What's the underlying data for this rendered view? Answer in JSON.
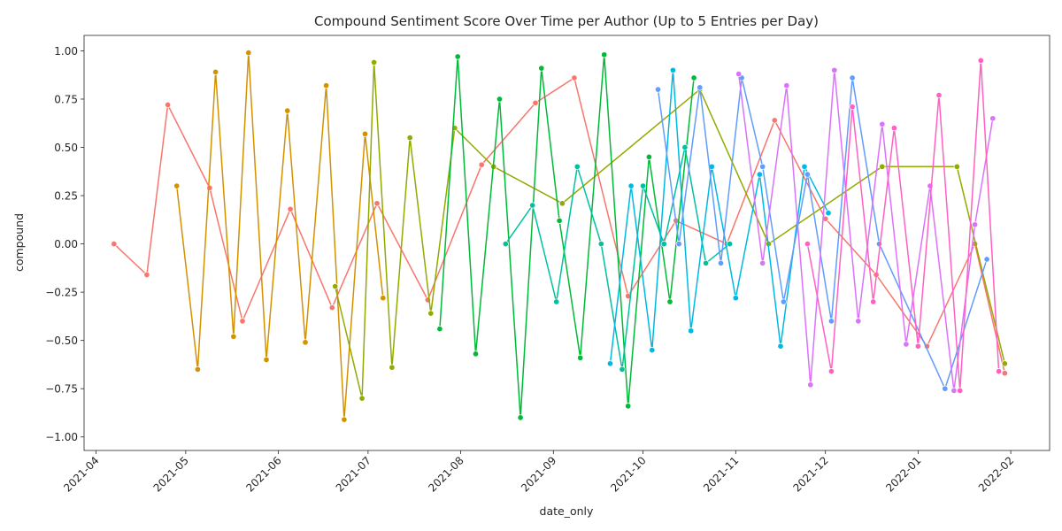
{
  "chart_data": {
    "type": "line",
    "title": "Compound Sentiment Score Over Time per Author (Up to 5 Entries per Day)",
    "xlabel": "date_only",
    "ylabel": "compound",
    "x_range": [
      "2021-03-28",
      "2022-02-14"
    ],
    "ylim": [
      -1.07,
      1.08
    ],
    "x_ticks": [
      "2021-04",
      "2021-05",
      "2021-06",
      "2021-07",
      "2021-08",
      "2021-09",
      "2021-10",
      "2021-11",
      "2021-12",
      "2022-01",
      "2022-02"
    ],
    "y_ticks": [
      -1.0,
      -0.75,
      -0.5,
      -0.25,
      0.0,
      0.25,
      0.5,
      0.75,
      1.0
    ],
    "y_tick_labels": [
      "−1.00",
      "−0.75",
      "−0.50",
      "−0.25",
      "0.00",
      "0.25",
      "0.50",
      "0.75",
      "1.00"
    ],
    "grid": false,
    "legend": "none",
    "marker": "circle",
    "series": [
      {
        "color": "#f8766d",
        "x": [
          "2021-04-07",
          "2021-04-18",
          "2021-04-25",
          "2021-05-09",
          "2021-05-20",
          "2021-06-05",
          "2021-06-19",
          "2021-07-04",
          "2021-07-21",
          "2021-08-08",
          "2021-08-26",
          "2021-09-08",
          "2021-09-26",
          "2021-10-12",
          "2021-10-29",
          "2021-11-14",
          "2021-12-01",
          "2021-12-18",
          "2022-01-04",
          "2022-01-20",
          "2022-01-30"
        ],
        "y": [
          0.0,
          -0.16,
          0.72,
          0.29,
          -0.4,
          0.18,
          -0.33,
          0.21,
          -0.29,
          0.41,
          0.73,
          0.86,
          -0.27,
          0.12,
          0.0,
          0.64,
          0.13,
          -0.16,
          -0.53,
          0.0,
          -0.67
        ]
      },
      {
        "color": "#d39200",
        "x": [
          "2021-04-28",
          "2021-05-05",
          "2021-05-11",
          "2021-05-17",
          "2021-05-22",
          "2021-05-28",
          "2021-06-04",
          "2021-06-10",
          "2021-06-17",
          "2021-06-23",
          "2021-06-30",
          "2021-07-06"
        ],
        "y": [
          0.3,
          -0.65,
          0.89,
          -0.48,
          0.99,
          -0.6,
          0.69,
          -0.51,
          0.82,
          -0.91,
          0.57,
          -0.28
        ]
      },
      {
        "color": "#93aa00",
        "x": [
          "2021-06-20",
          "2021-06-29",
          "2021-07-03",
          "2021-07-09",
          "2021-07-15",
          "2021-07-22",
          "2021-07-30",
          "2021-08-12",
          "2021-09-04",
          "2021-10-20",
          "2021-11-12",
          "2021-12-20",
          "2022-01-14",
          "2022-01-30"
        ],
        "y": [
          -0.22,
          -0.8,
          0.94,
          -0.64,
          0.55,
          -0.36,
          0.6,
          0.4,
          0.21,
          0.8,
          0.0,
          0.4,
          0.4,
          -0.62
        ]
      },
      {
        "color": "#00ba38",
        "x": [
          "2021-07-25",
          "2021-07-31",
          "2021-08-06",
          "2021-08-14",
          "2021-08-21",
          "2021-08-28",
          "2021-09-03",
          "2021-09-10",
          "2021-09-18",
          "2021-09-26",
          "2021-10-03",
          "2021-10-10",
          "2021-10-18"
        ],
        "y": [
          -0.44,
          0.97,
          -0.57,
          0.75,
          -0.9,
          0.91,
          0.12,
          -0.59,
          0.98,
          -0.84,
          0.45,
          -0.3,
          0.86
        ]
      },
      {
        "color": "#00c19f",
        "x": [
          "2021-08-16",
          "2021-08-25",
          "2021-09-02",
          "2021-09-09",
          "2021-09-17",
          "2021-09-24",
          "2021-10-01",
          "2021-10-08",
          "2021-10-15",
          "2021-10-22",
          "2021-10-30"
        ],
        "y": [
          0.0,
          0.2,
          -0.3,
          0.4,
          0.0,
          -0.65,
          0.3,
          0.0,
          0.5,
          -0.1,
          0.0
        ]
      },
      {
        "color": "#00b9e3",
        "x": [
          "2021-09-20",
          "2021-09-27",
          "2021-10-04",
          "2021-10-11",
          "2021-10-17",
          "2021-10-24",
          "2021-11-01",
          "2021-11-09",
          "2021-11-16",
          "2021-11-24",
          "2021-12-02"
        ],
        "y": [
          -0.62,
          0.3,
          -0.55,
          0.9,
          -0.45,
          0.4,
          -0.28,
          0.36,
          -0.53,
          0.4,
          0.16
        ]
      },
      {
        "color": "#619cff",
        "x": [
          "2021-10-06",
          "2021-10-13",
          "2021-10-20",
          "2021-10-27",
          "2021-11-03",
          "2021-11-10",
          "2021-11-17",
          "2021-11-25",
          "2021-12-03",
          "2021-12-10",
          "2021-12-19",
          "2022-01-10",
          "2022-01-24"
        ],
        "y": [
          0.8,
          0.0,
          0.81,
          -0.1,
          0.86,
          0.4,
          -0.3,
          0.36,
          -0.4,
          0.86,
          0.0,
          -0.75,
          -0.08
        ]
      },
      {
        "color": "#db72fb",
        "x": [
          "2021-11-02",
          "2021-11-10",
          "2021-11-18",
          "2021-11-26",
          "2021-12-04",
          "2021-12-12",
          "2021-12-20",
          "2021-12-28",
          "2022-01-05",
          "2022-01-13",
          "2022-01-20",
          "2022-01-26"
        ],
        "y": [
          0.88,
          -0.1,
          0.82,
          -0.73,
          0.9,
          -0.4,
          0.62,
          -0.52,
          0.3,
          -0.76,
          0.1,
          0.65
        ]
      },
      {
        "color": "#ff61c3",
        "x": [
          "2021-11-25",
          "2021-12-03",
          "2021-12-10",
          "2021-12-17",
          "2021-12-24",
          "2022-01-01",
          "2022-01-08",
          "2022-01-15",
          "2022-01-22",
          "2022-01-28"
        ],
        "y": [
          0.0,
          -0.66,
          0.71,
          -0.3,
          0.6,
          -0.53,
          0.77,
          -0.76,
          0.95,
          -0.66
        ]
      }
    ]
  }
}
